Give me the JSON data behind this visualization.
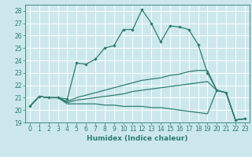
{
  "xlabel": "Humidex (Indice chaleur)",
  "background_color": "#cce8ed",
  "grid_color": "#ffffff",
  "line_color": "#2e7d6e",
  "xlim": [
    -0.5,
    23.5
  ],
  "ylim": [
    19,
    28.5
  ],
  "xticks": [
    0,
    1,
    2,
    3,
    4,
    5,
    6,
    7,
    8,
    9,
    10,
    11,
    12,
    13,
    14,
    15,
    16,
    17,
    18,
    19,
    20,
    21,
    22,
    23
  ],
  "yticks": [
    19,
    20,
    21,
    22,
    23,
    24,
    25,
    26,
    27,
    28
  ],
  "line1_x": [
    0,
    1,
    2,
    3,
    4,
    5,
    6,
    7,
    8,
    9,
    10,
    11,
    12,
    13,
    14,
    15,
    16,
    17,
    18,
    19,
    20,
    21,
    22,
    23
  ],
  "line1_y": [
    20.3,
    21.1,
    21.0,
    21.0,
    20.9,
    23.8,
    23.7,
    24.1,
    25.0,
    25.2,
    26.5,
    26.5,
    28.1,
    27.0,
    25.5,
    26.8,
    26.7,
    26.5,
    25.3,
    23.0,
    21.6,
    21.4,
    19.2,
    19.3
  ],
  "line2_x": [
    0,
    1,
    2,
    3,
    4,
    5,
    6,
    7,
    8,
    9,
    10,
    11,
    12,
    13,
    14,
    15,
    16,
    17,
    18,
    19,
    20,
    21,
    22,
    23
  ],
  "line2_y": [
    20.3,
    21.1,
    21.0,
    21.0,
    20.7,
    21.0,
    21.2,
    21.4,
    21.6,
    21.8,
    22.0,
    22.2,
    22.4,
    22.5,
    22.6,
    22.8,
    22.9,
    23.1,
    23.2,
    23.2,
    21.6,
    21.4,
    19.2,
    19.3
  ],
  "line3_x": [
    0,
    1,
    2,
    3,
    4,
    5,
    6,
    7,
    8,
    9,
    10,
    11,
    12,
    13,
    14,
    15,
    16,
    17,
    18,
    19,
    20,
    21,
    22,
    23
  ],
  "line3_y": [
    20.3,
    21.1,
    21.0,
    21.0,
    20.6,
    20.8,
    20.9,
    21.0,
    21.1,
    21.2,
    21.3,
    21.5,
    21.6,
    21.7,
    21.8,
    21.9,
    22.0,
    22.1,
    22.2,
    22.3,
    21.6,
    21.4,
    19.2,
    19.3
  ],
  "line4_x": [
    0,
    1,
    2,
    3,
    4,
    5,
    6,
    7,
    8,
    9,
    10,
    11,
    12,
    13,
    14,
    15,
    16,
    17,
    18,
    19,
    20,
    21,
    22,
    23
  ],
  "line4_y": [
    20.3,
    21.1,
    21.0,
    21.0,
    20.5,
    20.5,
    20.5,
    20.5,
    20.4,
    20.4,
    20.3,
    20.3,
    20.3,
    20.2,
    20.2,
    20.1,
    20.0,
    19.9,
    19.8,
    19.7,
    21.6,
    21.4,
    19.2,
    19.3
  ],
  "markersize": 2.2,
  "linewidth": 0.9,
  "label_fontsize": 6.5,
  "tick_fontsize": 5.5
}
